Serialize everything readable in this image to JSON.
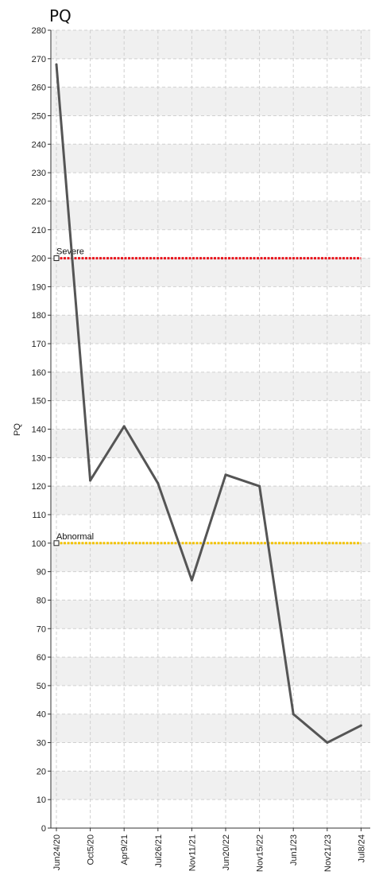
{
  "chart_data": {
    "type": "line",
    "title": "PQ",
    "ylabel": "PQ",
    "xlabel": "",
    "ylim": [
      0,
      280
    ],
    "y_ticks": [
      0,
      10,
      20,
      30,
      40,
      50,
      60,
      70,
      80,
      90,
      100,
      110,
      120,
      130,
      140,
      150,
      160,
      170,
      180,
      190,
      200,
      210,
      220,
      230,
      240,
      250,
      260,
      270,
      280
    ],
    "categories": [
      "Jun24/20",
      "Oct5/20",
      "Apr9/21",
      "Jul26/21",
      "Nov11/21",
      "Jun20/22",
      "Nov15/22",
      "Jun1/23",
      "Nov21/23",
      "Jul8/24"
    ],
    "series": [
      {
        "values": [
          268,
          122,
          141,
          121,
          87,
          124,
          120,
          40,
          30,
          36
        ],
        "color": "#555555"
      }
    ],
    "reference_lines": [
      {
        "label": "Severe",
        "value": 200,
        "color": "#e8141c"
      },
      {
        "label": "Abnormal",
        "value": 100,
        "color": "#f2c200"
      }
    ],
    "grid": true,
    "band_color": "#f0f0f0"
  }
}
